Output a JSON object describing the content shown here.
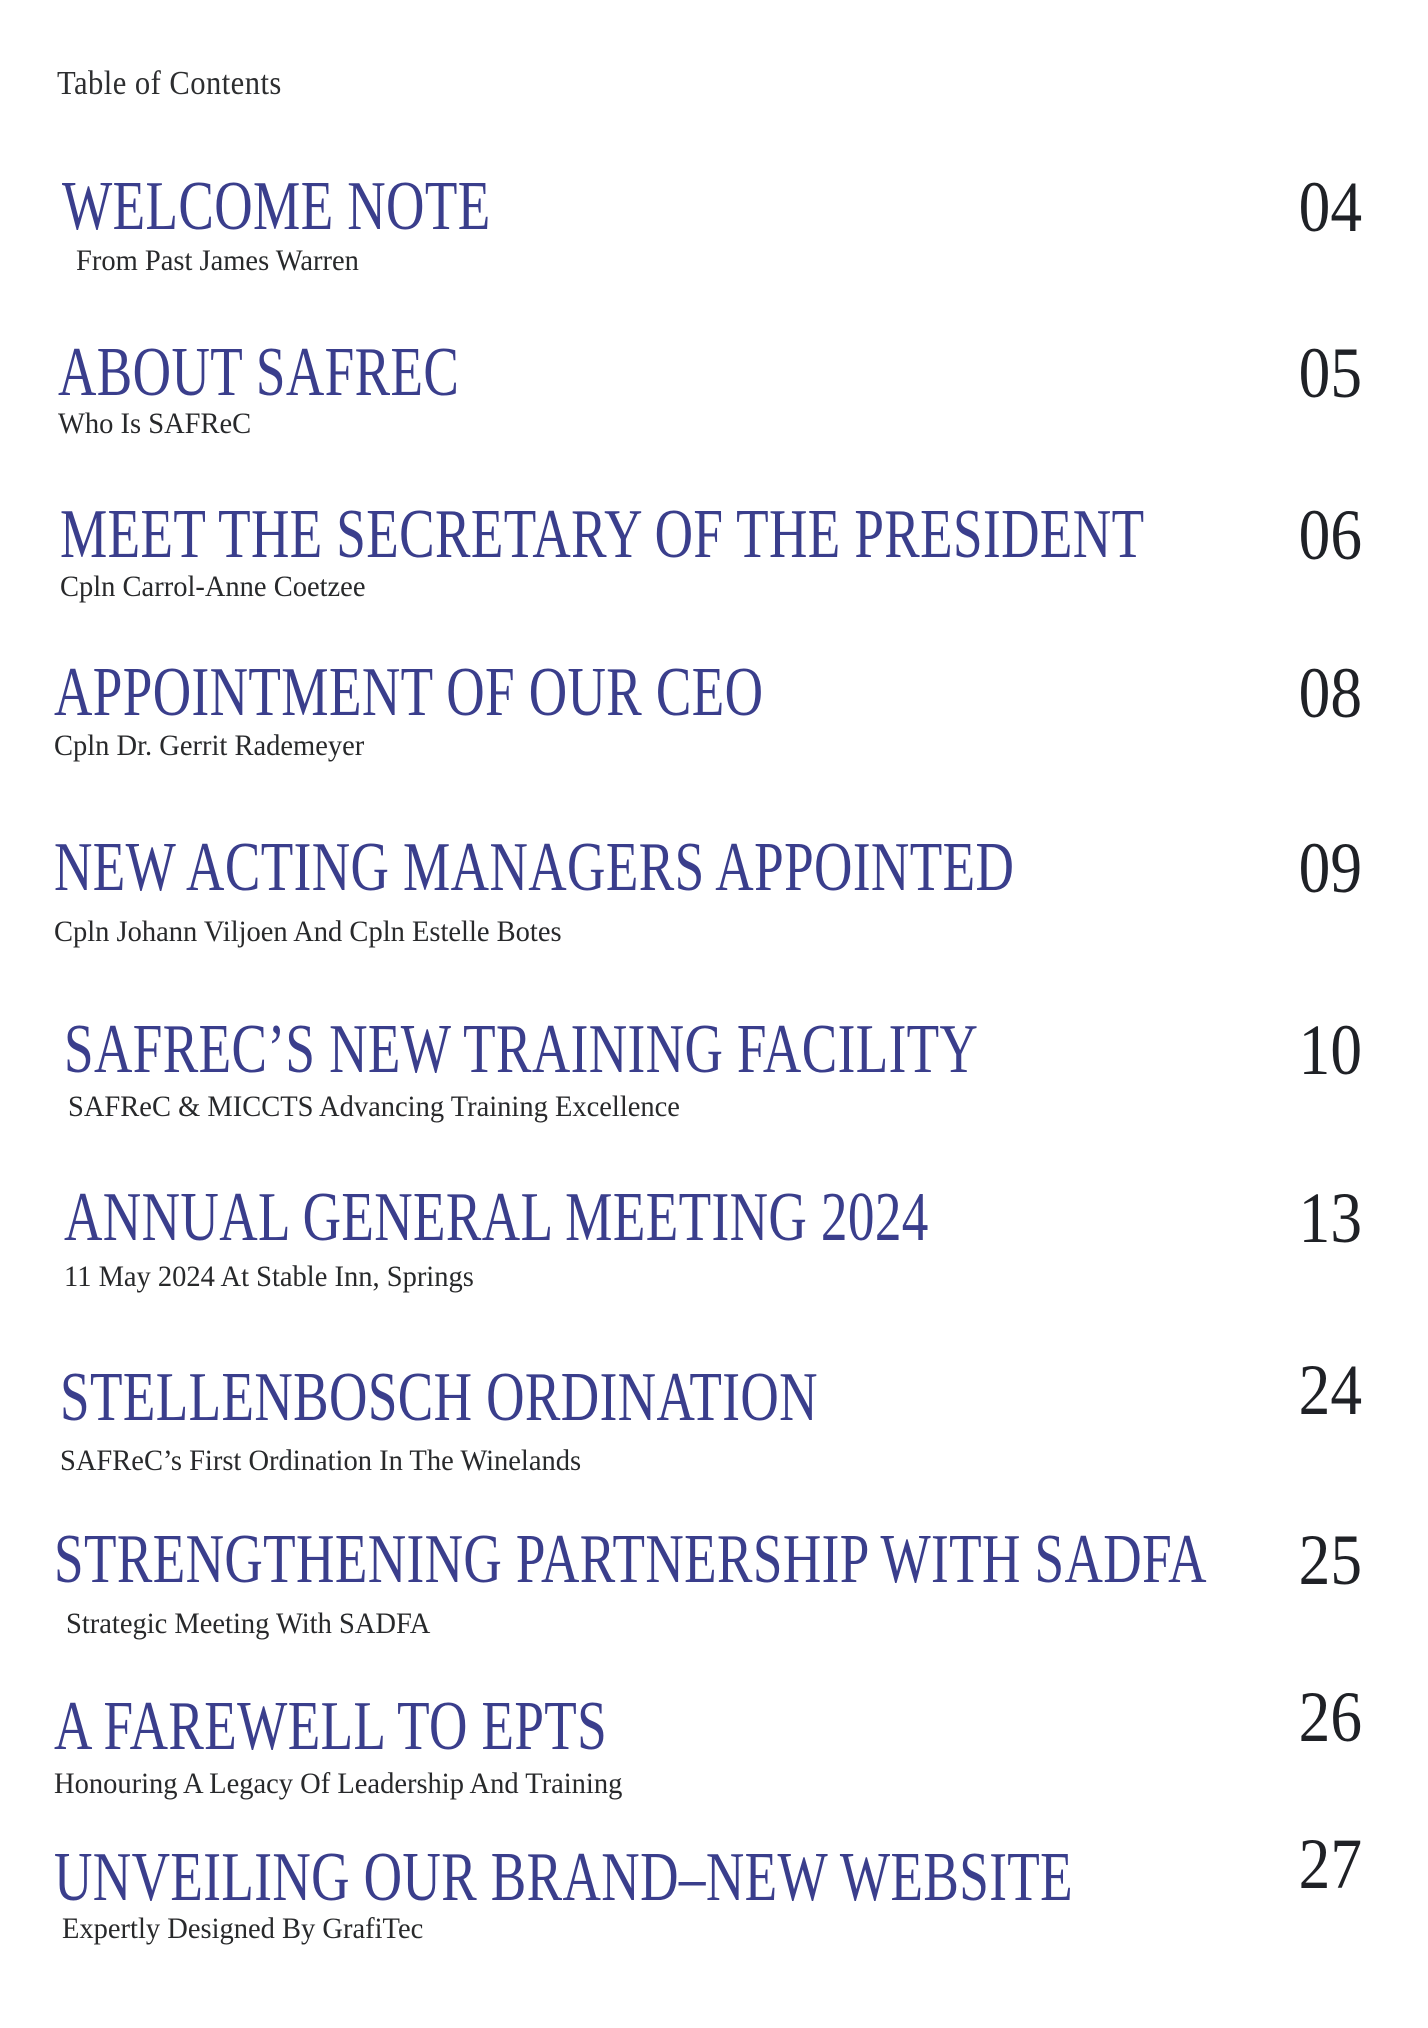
{
  "page": {
    "heading": "Table of Contents",
    "accent_color": "#3a3e8c",
    "subtitle_color": "#28292b",
    "page_number_color": "#1f2126",
    "background_color": "#ffffff"
  },
  "entries": [
    {
      "title": "WELCOME NOTE",
      "subtitle": "From Past James Warren",
      "page": "04"
    },
    {
      "title": "ABOUT SAFREC",
      "subtitle": "Who Is SAFReC",
      "page": "05"
    },
    {
      "title": "MEET THE SECRETARY OF THE PRESIDENT",
      "subtitle": "Cpln Carrol-Anne Coetzee",
      "page": "06"
    },
    {
      "title": "APPOINTMENT OF OUR CEO",
      "subtitle": "Cpln Dr. Gerrit Rademeyer",
      "page": "08"
    },
    {
      "title": "NEW ACTING MANAGERS APPOINTED",
      "subtitle": "Cpln Johann Viljoen And Cpln Estelle Botes",
      "page": "09"
    },
    {
      "title": "SAFREC’S NEW TRAINING FACILITY",
      "subtitle": "SAFReC & MICCTS Advancing Training Excellence",
      "page": "10"
    },
    {
      "title": "ANNUAL GENERAL MEETING 2024",
      "subtitle": "11 May 2024 At Stable Inn, Springs",
      "page": "13"
    },
    {
      "title": "STELLENBOSCH ORDINATION",
      "subtitle": "SAFReC’s First Ordination In The Winelands",
      "page": "24"
    },
    {
      "title": "STRENGTHENING PARTNERSHIP WITH SADFA",
      "subtitle": "Strategic Meeting With SADFA",
      "page": "25"
    },
    {
      "title": "A FAREWELL TO EPTS",
      "subtitle": "Honouring A Legacy Of Leadership And Training",
      "page": "26"
    },
    {
      "title": "UNVEILING OUR BRAND–NEW WEBSITE",
      "subtitle": "Expertly Designed By GrafiTec",
      "page": "27"
    }
  ]
}
